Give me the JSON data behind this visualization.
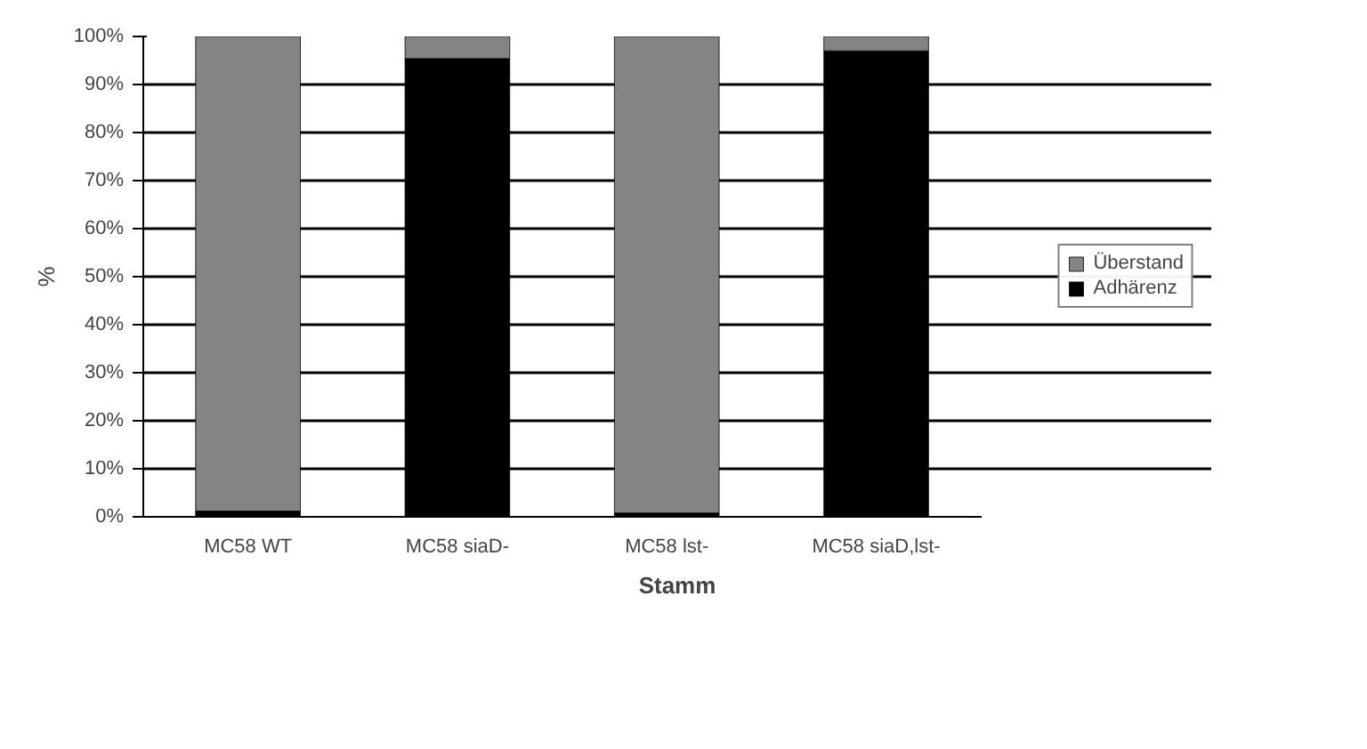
{
  "chart_data": {
    "type": "bar",
    "stacked": true,
    "xlabel": "Stamm",
    "ylabel": "%",
    "categories": [
      "MC58 WT",
      "MC58 siaD-",
      "MC58 lst-",
      "MC58 siaD,lst-"
    ],
    "series": [
      {
        "name": "Adhärenz",
        "color": "#000000",
        "values": [
          1.2,
          95.4,
          0.8,
          97.0
        ]
      },
      {
        "name": "Überstand",
        "color": "#858385",
        "values": [
          98.8,
          4.6,
          99.2,
          3.0
        ]
      }
    ],
    "ylim": [
      0,
      100
    ],
    "yticks": [
      {
        "value": 0,
        "label": "0%"
      },
      {
        "value": 10,
        "label": "10%"
      },
      {
        "value": 20,
        "label": "20%"
      },
      {
        "value": 30,
        "label": "30%"
      },
      {
        "value": 40,
        "label": "40%"
      },
      {
        "value": 50,
        "label": "50%"
      },
      {
        "value": 60,
        "label": "60%"
      },
      {
        "value": 70,
        "label": "70%"
      },
      {
        "value": 80,
        "label": "80%"
      },
      {
        "value": 90,
        "label": "90%"
      },
      {
        "value": 100,
        "label": "100%"
      }
    ],
    "grid": "y",
    "legend": "right"
  }
}
